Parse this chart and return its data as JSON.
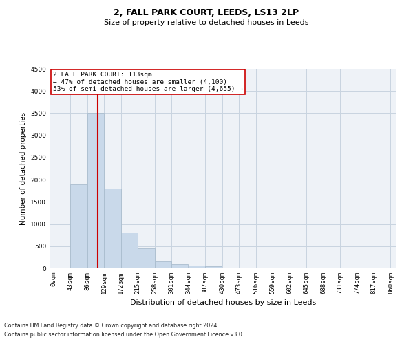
{
  "title_line1": "2, FALL PARK COURT, LEEDS, LS13 2LP",
  "title_line2": "Size of property relative to detached houses in Leeds",
  "xlabel": "Distribution of detached houses by size in Leeds",
  "ylabel": "Number of detached properties",
  "footer_line1": "Contains HM Land Registry data © Crown copyright and database right 2024.",
  "footer_line2": "Contains public sector information licensed under the Open Government Licence v3.0.",
  "annotation_line1": "2 FALL PARK COURT: 113sqm",
  "annotation_line2": "← 47% of detached houses are smaller (4,100)",
  "annotation_line3": "53% of semi-detached houses are larger (4,655) →",
  "bar_edges": [
    0,
    43,
    86,
    129,
    172,
    215,
    258,
    301,
    344,
    387,
    430,
    473,
    516,
    559,
    602,
    645,
    688,
    731,
    774,
    817,
    860
  ],
  "bar_heights": [
    5,
    1900,
    3500,
    1800,
    800,
    450,
    150,
    90,
    60,
    50,
    0,
    0,
    0,
    0,
    0,
    0,
    0,
    0,
    0,
    0
  ],
  "property_size": 113,
  "bar_facecolor": "#c9d9ea",
  "bar_edgecolor": "#aabdce",
  "vline_color": "#cc0000",
  "annotation_box_edgecolor": "#cc0000",
  "annotation_box_facecolor": "#ffffff",
  "grid_color": "#c8d4e0",
  "background_color": "#eef2f7",
  "ylim": [
    0,
    4500
  ],
  "yticks": [
    0,
    500,
    1000,
    1500,
    2000,
    2500,
    3000,
    3500,
    4000,
    4500
  ],
  "title1_fontsize": 9,
  "title2_fontsize": 8,
  "ylabel_fontsize": 7.5,
  "xlabel_fontsize": 8,
  "tick_fontsize": 6.5,
  "annotation_fontsize": 6.8,
  "footer_fontsize": 5.8
}
